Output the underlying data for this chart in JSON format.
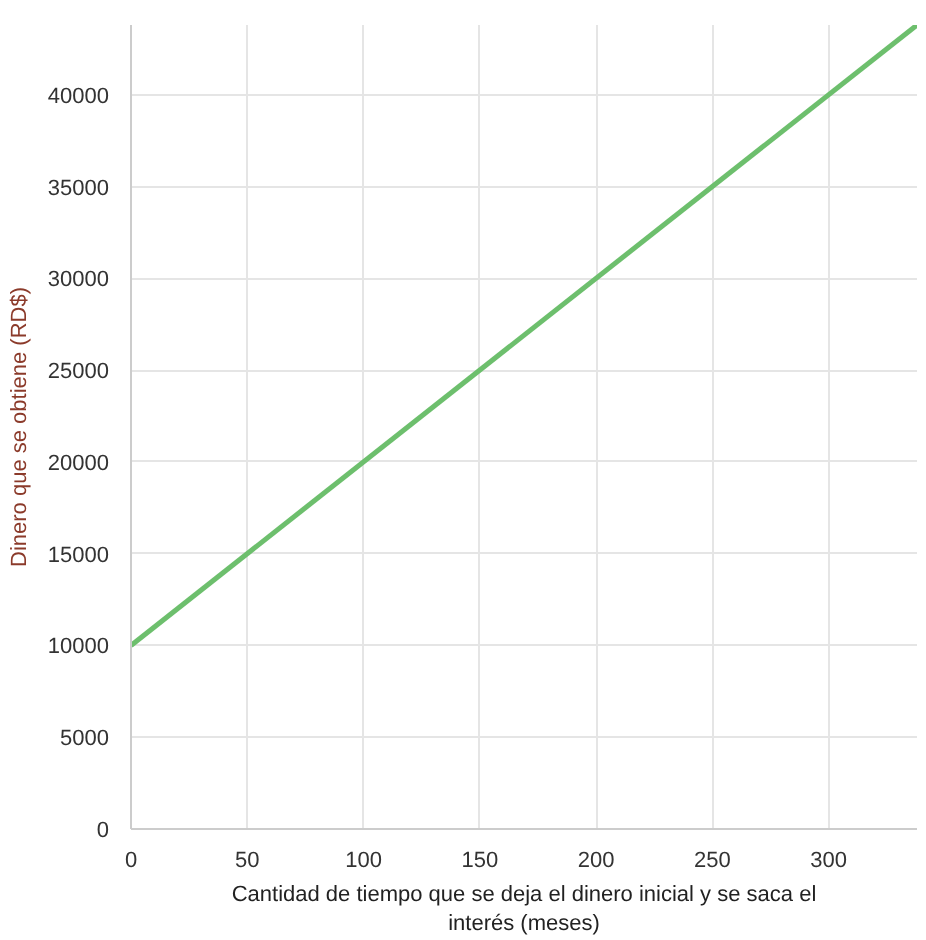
{
  "chart_data": {
    "type": "line",
    "xlabel": "Cantidad de tiempo que se deja el dinero inicial y se saca el interés (meses)",
    "ylabel": "Dinero que se obtiene (RD$)",
    "x": [
      0,
      338
    ],
    "series": [
      {
        "color": "#6dbf6d",
        "values": [
          10000,
          43800
        ]
      }
    ],
    "xlim": [
      0,
      338
    ],
    "ylim": [
      0,
      43800
    ],
    "xticks": [
      0,
      50,
      100,
      150,
      200,
      250,
      300
    ],
    "yticks": [
      {
        "value": 0,
        "label": "0"
      },
      5000,
      10000,
      15000,
      20000,
      25000,
      30000,
      35000,
      40000
    ],
    "grid": true,
    "marker": "none",
    "line_style": "solid"
  }
}
